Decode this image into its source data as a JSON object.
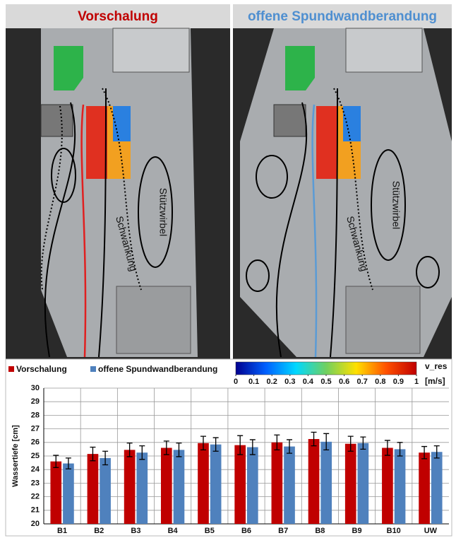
{
  "panels": [
    {
      "title": "Vorschalung",
      "labels": [
        "Stützwirbel",
        "Schwankung"
      ]
    },
    {
      "title": "offene Spundwandberandung",
      "labels": [
        "Stützwirbel",
        "Schwankung"
      ]
    }
  ],
  "chart_data": [
    {
      "type": "bar",
      "ylabel": "Wassertiefe [cm]",
      "categories": [
        "B1",
        "B2",
        "B3",
        "B4",
        "B5",
        "B6",
        "B7",
        "B8",
        "B9",
        "B10",
        "UW"
      ],
      "series": [
        {
          "name": "Vorschalung",
          "color": "#c00000",
          "values": [
            24.6,
            25.15,
            25.45,
            25.6,
            25.95,
            25.8,
            26.0,
            26.25,
            25.9,
            25.6,
            25.25
          ],
          "errors": [
            0.45,
            0.5,
            0.5,
            0.5,
            0.5,
            0.7,
            0.55,
            0.5,
            0.55,
            0.55,
            0.45
          ]
        },
        {
          "name": "offene Spundwandberandung",
          "color": "#4f81bd",
          "values": [
            24.45,
            24.85,
            25.25,
            25.45,
            25.85,
            25.65,
            25.7,
            26.05,
            25.95,
            25.5,
            25.3
          ],
          "errors": [
            0.4,
            0.5,
            0.5,
            0.5,
            0.5,
            0.55,
            0.5,
            0.6,
            0.45,
            0.5,
            0.45
          ]
        }
      ],
      "ylim": [
        20,
        30
      ],
      "yticks": [
        20,
        21,
        22,
        23,
        24,
        25,
        26,
        27,
        28,
        29,
        30
      ],
      "grid": true
    },
    {
      "type": "colorbar",
      "title": "v_res",
      "unit": "[m/s]",
      "colors": [
        "#00008f",
        "#0060ff",
        "#00d8ff",
        "#70d060",
        "#ffe000",
        "#ff5000",
        "#c00000"
      ],
      "xlim": [
        0,
        1
      ],
      "xticks": [
        0,
        0.1,
        0.2,
        0.3,
        0.4,
        0.5,
        0.6,
        0.7,
        0.8,
        0.9,
        1
      ]
    }
  ]
}
